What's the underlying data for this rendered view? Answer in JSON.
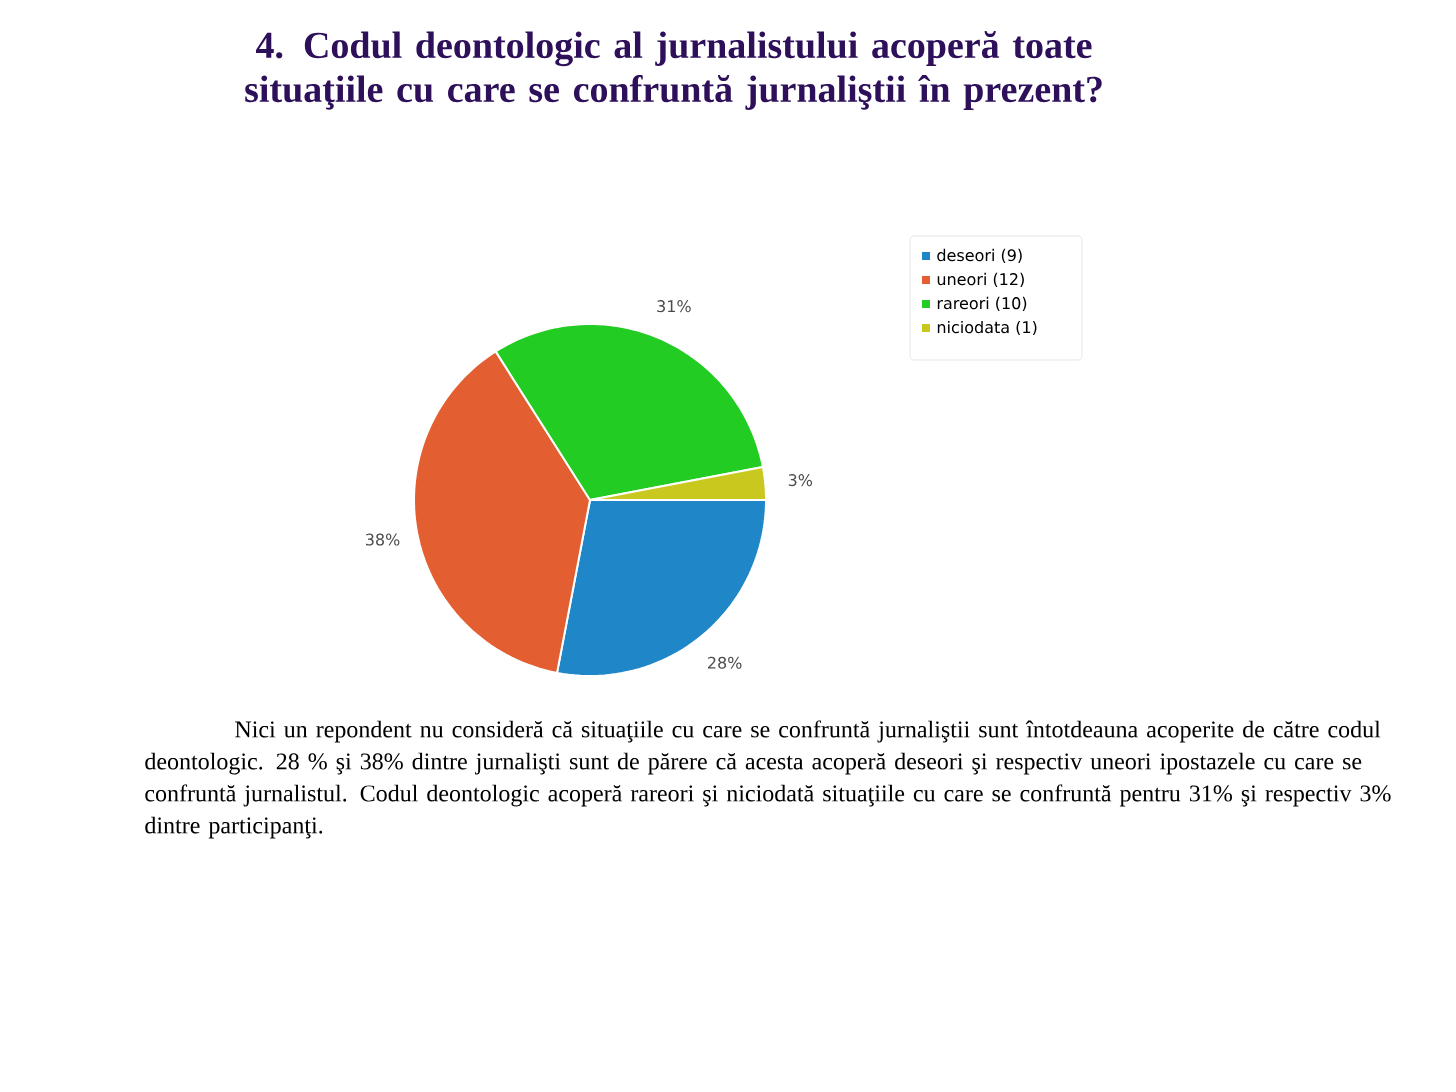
{
  "chart_data": {
    "type": "pie",
    "title": "4. Codul deontologic al jurnalistului acoperă toate situaţiile cu care se confruntă jurnaliştii în prezent?",
    "categories": [
      "deseori (9)",
      "uneori (12)",
      "rareori (10)",
      "niciodata (1)"
    ],
    "values": [
      28,
      38,
      31,
      3
    ],
    "colors": [
      "#1f86c8",
      "#e35f32",
      "#22cc22",
      "#c8c81e"
    ],
    "value_labels": [
      "28%",
      "38%",
      "31%",
      "3%"
    ],
    "legend": "top right",
    "annotations": [
      "Nici un repondent nu consideră că situaţiile cu care se confruntă jurnaliştii sunt întotdeauna acoperite de către codul deontologic. 28 % şi 38% dintre jurnalişti sunt de părere că acesta acoperă deseori şi respectiv uneori ipostazele cu care se confruntă jurnalistul. Codul deontologic acoperă rareori şi niciodată situaţiile cu care se confruntă pentru 31% şi respectiv 3% dintre participanţi."
    ]
  }
}
